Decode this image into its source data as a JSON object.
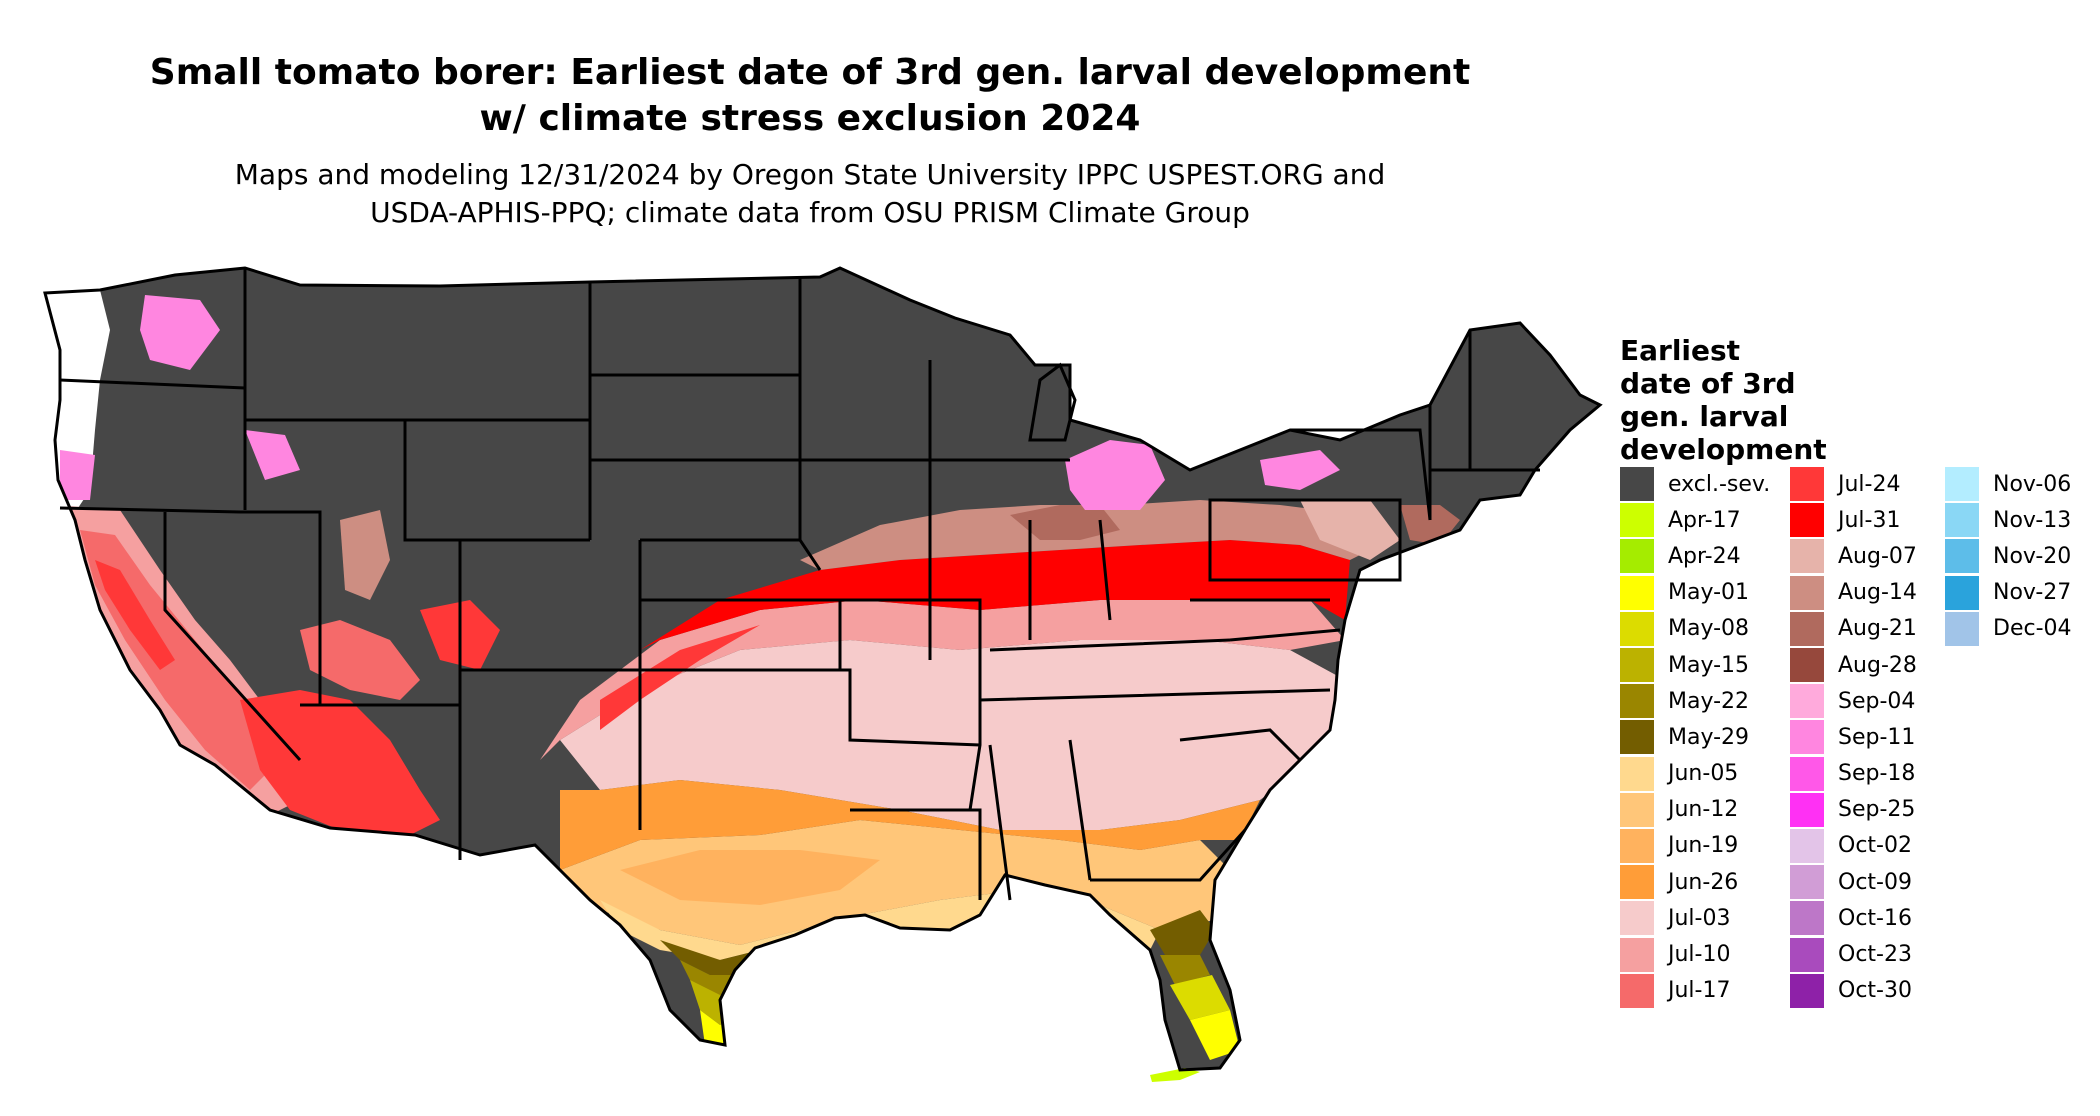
{
  "title_line1": "Small tomato borer: Earliest date of 3rd gen. larval development",
  "title_line2": "w/ climate stress exclusion 2024",
  "subtitle_line1": "Maps and modeling 12/31/2024 by Oregon State University IPPC USPEST.ORG and",
  "subtitle_line2": "USDA-APHIS-PPQ; climate data from OSU PRISM Climate Group",
  "legend": {
    "title_lines": [
      "Earliest",
      "date of 3rd",
      "gen. larval",
      "development"
    ],
    "items": [
      {
        "label": "excl.-sev.",
        "color": "#474747"
      },
      {
        "label": "Apr-17",
        "color": "#cdff00"
      },
      {
        "label": "Apr-24",
        "color": "#a5ec00"
      },
      {
        "label": "May-01",
        "color": "#ffff00"
      },
      {
        "label": "May-08",
        "color": "#dcdc00"
      },
      {
        "label": "May-15",
        "color": "#bcb200"
      },
      {
        "label": "May-22",
        "color": "#9a8600"
      },
      {
        "label": "May-29",
        "color": "#735d00"
      },
      {
        "label": "Jun-05",
        "color": "#ffd98e"
      },
      {
        "label": "Jun-12",
        "color": "#ffc679"
      },
      {
        "label": "Jun-19",
        "color": "#ffb25e"
      },
      {
        "label": "Jun-26",
        "color": "#ff9d38"
      },
      {
        "label": "Jul-03",
        "color": "#f6cbcb"
      },
      {
        "label": "Jul-10",
        "color": "#f5a0a0"
      },
      {
        "label": "Jul-17",
        "color": "#f56a6a"
      },
      {
        "label": "Jul-24",
        "color": "#ff3838"
      },
      {
        "label": "Jul-31",
        "color": "#ff0000"
      },
      {
        "label": "Aug-07",
        "color": "#e6b3aa"
      },
      {
        "label": "Aug-14",
        "color": "#cd8e82"
      },
      {
        "label": "Aug-21",
        "color": "#b06a5e"
      },
      {
        "label": "Aug-28",
        "color": "#96483c"
      },
      {
        "label": "Sep-04",
        "color": "#ffaadc"
      },
      {
        "label": "Sep-11",
        "color": "#ff86e0"
      },
      {
        "label": "Sep-18",
        "color": "#ff58e8"
      },
      {
        "label": "Sep-25",
        "color": "#ff30f4"
      },
      {
        "label": "Oct-02",
        "color": "#e3c4e8"
      },
      {
        "label": "Oct-09",
        "color": "#d19dd6"
      },
      {
        "label": "Oct-16",
        "color": "#bd77c8"
      },
      {
        "label": "Oct-23",
        "color": "#a94bbd"
      },
      {
        "label": "Oct-30",
        "color": "#8e21a8"
      },
      {
        "label": "Nov-06",
        "color": "#b3edff"
      },
      {
        "label": "Nov-13",
        "color": "#8ad7f5"
      },
      {
        "label": "Nov-20",
        "color": "#5dbde9"
      },
      {
        "label": "Nov-27",
        "color": "#2aa3dc"
      },
      {
        "label": "Dec-04",
        "color": "#a1c4e8"
      }
    ]
  }
}
